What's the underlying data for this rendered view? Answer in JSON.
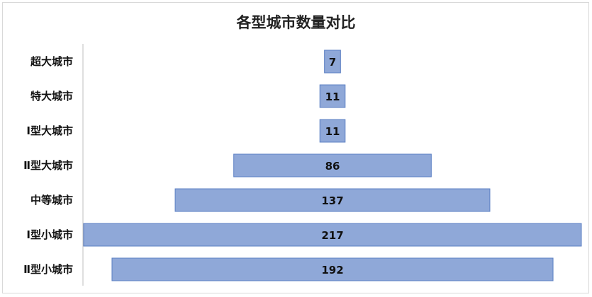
{
  "chart_data": {
    "type": "bar",
    "orientation": "horizontal-centered",
    "title": "各型城市数量对比",
    "categories": [
      "超大城市",
      "特大城市",
      "Ⅰ型大城市",
      "Ⅱ型大城市",
      "中等城市",
      "Ⅰ型小城市",
      "Ⅱ型小城市"
    ],
    "values": [
      7,
      11,
      11,
      86,
      137,
      217,
      192
    ],
    "xlabel": "",
    "ylabel": "",
    "grid": false,
    "legend": "none",
    "bar_color": "#8fa8d8",
    "bar_border_color": "#5b7fc3"
  }
}
